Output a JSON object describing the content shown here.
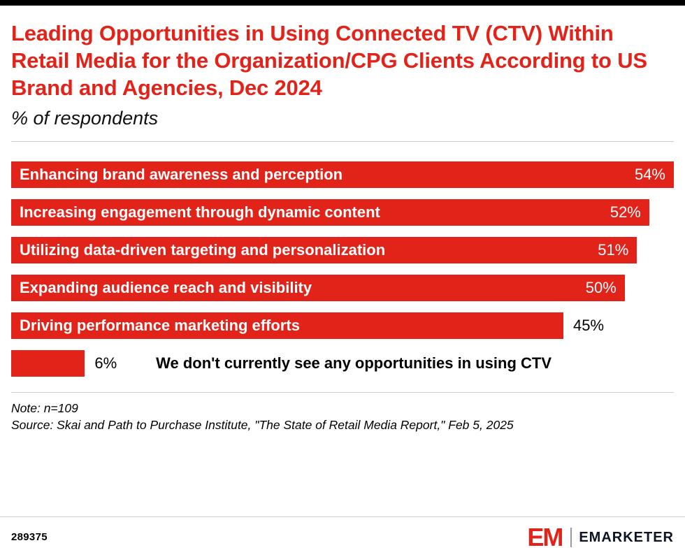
{
  "colors": {
    "accent": "#e2231a",
    "bar": "#e2231a",
    "text": "#000000",
    "rule": "#cfcfcf"
  },
  "header": {
    "title": "Leading Opportunities in Using Connected TV (CTV) Within Retail Media for the Organization/CPG Clients According to US Brand and Agencies, Dec 2024",
    "subtitle": "% of respondents"
  },
  "chart_data": {
    "type": "bar",
    "orientation": "horizontal",
    "title": "Leading Opportunities in Using Connected TV (CTV) Within Retail Media for the Organization/CPG Clients According to US Brand and Agencies, Dec 2024",
    "subtitle": "% of respondents",
    "unit": "% of respondents",
    "max_value": 54,
    "bar_color": "#e2231a",
    "categories": [
      "Enhancing brand awareness and perception",
      "Increasing engagement through dynamic content",
      "Utilizing data-driven targeting and personalization",
      "Expanding audience reach and visibility",
      "Driving performance marketing efforts",
      "We don't currently see any opportunities in using CTV"
    ],
    "values": [
      54,
      52,
      51,
      50,
      45,
      6
    ],
    "bars": [
      {
        "label": "Enhancing brand awareness and perception",
        "value": 54,
        "value_label": "54%",
        "label_inside": true,
        "value_inside": true
      },
      {
        "label": "Increasing engagement through dynamic content",
        "value": 52,
        "value_label": "52%",
        "label_inside": true,
        "value_inside": true
      },
      {
        "label": "Utilizing data-driven targeting and personalization",
        "value": 51,
        "value_label": "51%",
        "label_inside": true,
        "value_inside": true
      },
      {
        "label": "Expanding audience reach and visibility",
        "value": 50,
        "value_label": "50%",
        "label_inside": true,
        "value_inside": true
      },
      {
        "label": "Driving performance marketing efforts",
        "value": 45,
        "value_label": "45%",
        "label_inside": true,
        "value_inside": false
      },
      {
        "label": "We don't currently see any opportunities in using CTV",
        "value": 6,
        "value_label": "6%",
        "label_inside": false,
        "value_inside": false
      }
    ]
  },
  "notes": {
    "note": "Note: n=109",
    "source": "Source: Skai and Path to Purchase Institute, \"The State of Retail Media Report,\" Feb 5, 2025"
  },
  "footer": {
    "chart_id": "289375",
    "logo_mark": "EM",
    "logo_text": "EMARKETER"
  }
}
